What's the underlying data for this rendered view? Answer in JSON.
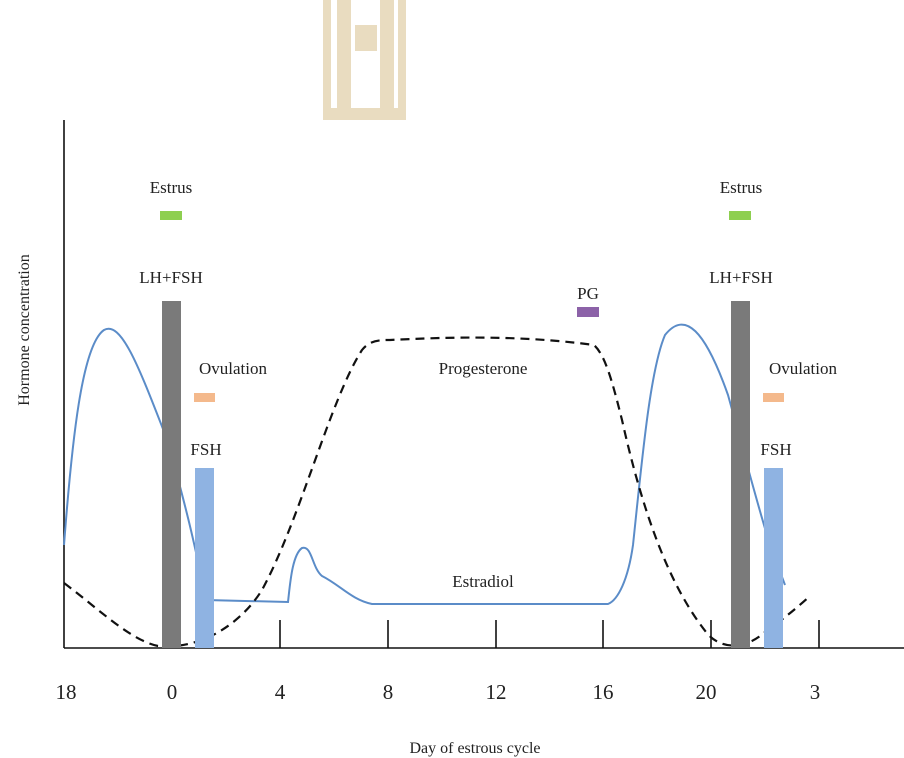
{
  "chart_data": {
    "type": "line",
    "xlabel": "Day of estrous cycle",
    "ylabel": "Hormone concentration",
    "tick_labels": [
      "18",
      "0",
      "4",
      "8",
      "12",
      "16",
      "20",
      "3"
    ],
    "annotations": {
      "estrus": "Estrus",
      "lh_fsh": "LH+FSH",
      "ovulation": "Ovulation",
      "fsh": "FSH",
      "pg": "PG",
      "progesterone": "Progesterone",
      "estradiol": "Estradiol"
    },
    "curves": {
      "estradiol": {
        "label": "Estradiol",
        "style": "solid",
        "color": "#5b8cc8"
      },
      "progesterone": {
        "label": "Progesterone",
        "style": "dashed",
        "color": "#111111"
      }
    },
    "colors": {
      "estrus_bar": "#8ecf50",
      "lh_fsh_bar": "#7a7a7a",
      "ovulation_bar": "#f4b98c",
      "fsh_bar": "#8fb3e2",
      "pg_bar": "#8c62a8"
    }
  },
  "watermark": "A"
}
